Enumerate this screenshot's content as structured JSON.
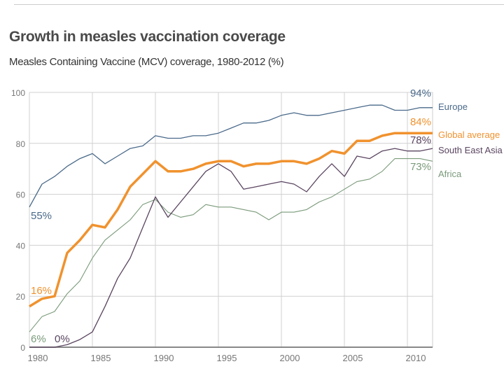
{
  "title": "Growth in measles vaccination coverage",
  "subtitle": "Measles Containing Vaccine (MCV) coverage, 1980-2012 (%)",
  "chart_data": {
    "type": "line",
    "title": "Growth in measles vaccination coverage",
    "subtitle": "Measles Containing Vaccine (MCV) coverage, 1980-2012 (%)",
    "xlabel": "",
    "ylabel": "",
    "xlim": [
      1980,
      2012
    ],
    "ylim": [
      0,
      100
    ],
    "xticks": [
      1980,
      1985,
      1990,
      1995,
      2000,
      2005,
      2010
    ],
    "yticks": [
      0,
      20,
      40,
      60,
      80,
      100
    ],
    "grid": true,
    "legend": "right",
    "x": [
      1980,
      1981,
      1982,
      1983,
      1984,
      1985,
      1986,
      1987,
      1988,
      1989,
      1990,
      1991,
      1992,
      1993,
      1994,
      1995,
      1996,
      1997,
      1998,
      1999,
      2000,
      2001,
      2002,
      2003,
      2004,
      2005,
      2006,
      2007,
      2008,
      2009,
      2010,
      2011,
      2012
    ],
    "series": [
      {
        "name": "Europe",
        "color": "#4a6a8a",
        "width": 1.3,
        "start_label": "55%",
        "end_label": "94%",
        "values": [
          55,
          64,
          67,
          71,
          74,
          76,
          72,
          75,
          78,
          79,
          83,
          82,
          82,
          83,
          83,
          84,
          86,
          88,
          88,
          89,
          91,
          92,
          91,
          91,
          92,
          93,
          94,
          95,
          95,
          93,
          93,
          94,
          94
        ]
      },
      {
        "name": "Global average",
        "color": "#f0922e",
        "width": 3.5,
        "start_label": "16%",
        "end_label": "84%",
        "values": [
          16,
          19,
          20,
          37,
          42,
          48,
          47,
          54,
          63,
          68,
          73,
          69,
          69,
          70,
          72,
          73,
          73,
          71,
          72,
          72,
          73,
          73,
          72,
          74,
          77,
          76,
          81,
          81,
          83,
          84,
          84,
          84,
          84
        ]
      },
      {
        "name": "South East Asia",
        "color": "#5a4560",
        "width": 1.3,
        "start_label": "0%",
        "end_label": "78%",
        "values": [
          0,
          0,
          0,
          1,
          3,
          6,
          16,
          27,
          35,
          47,
          59,
          51,
          57,
          63,
          69,
          72,
          69,
          62,
          63,
          64,
          65,
          64,
          61,
          67,
          72,
          67,
          75,
          74,
          77,
          78,
          77,
          77,
          78
        ]
      },
      {
        "name": "Africa",
        "color": "#7a9a7a",
        "width": 1.1,
        "start_label": "6%",
        "end_label": "73%",
        "values": [
          6,
          12,
          14,
          21,
          26,
          35,
          42,
          46,
          50,
          56,
          58,
          53,
          51,
          52,
          56,
          55,
          55,
          54,
          53,
          50,
          53,
          53,
          54,
          57,
          59,
          62,
          65,
          66,
          69,
          74,
          74,
          74,
          73
        ]
      }
    ]
  }
}
